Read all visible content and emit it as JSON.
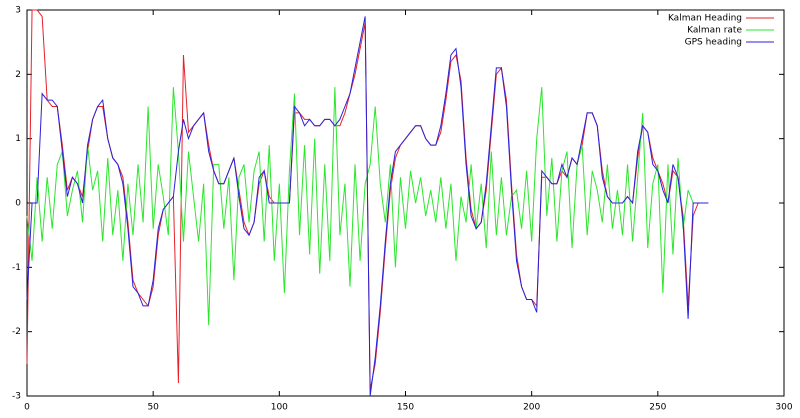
{
  "chart_data": {
    "type": "line",
    "x": [
      0,
      2,
      4,
      6,
      8,
      10,
      12,
      14,
      16,
      18,
      20,
      22,
      24,
      26,
      28,
      30,
      32,
      34,
      36,
      38,
      40,
      42,
      44,
      46,
      48,
      50,
      52,
      54,
      56,
      58,
      60,
      62,
      64,
      66,
      68,
      70,
      72,
      74,
      76,
      78,
      80,
      82,
      84,
      86,
      88,
      90,
      92,
      94,
      96,
      98,
      100,
      102,
      104,
      106,
      108,
      110,
      112,
      114,
      116,
      118,
      120,
      122,
      124,
      126,
      128,
      130,
      132,
      134,
      136,
      138,
      140,
      142,
      144,
      146,
      148,
      150,
      152,
      154,
      156,
      158,
      160,
      162,
      164,
      166,
      168,
      170,
      172,
      174,
      176,
      178,
      180,
      182,
      184,
      186,
      188,
      190,
      192,
      194,
      196,
      198,
      200,
      202,
      204,
      206,
      208,
      210,
      212,
      214,
      216,
      218,
      220,
      222,
      224,
      226,
      228,
      230,
      232,
      234,
      236,
      238,
      240,
      242,
      244,
      246,
      248,
      250,
      252,
      254,
      256,
      258,
      260,
      262,
      264,
      266,
      268,
      270
    ],
    "series": [
      {
        "name": "Kalman Heading",
        "color": "#e8202a",
        "values": [
          -2.5,
          3,
          3,
          2.9,
          1.6,
          1.5,
          1.5,
          0.9,
          0.2,
          0.4,
          0.3,
          0.1,
          0.8,
          1.3,
          1.5,
          1.5,
          1.0,
          0.7,
          0.6,
          0.4,
          -0.3,
          -1.2,
          -1.4,
          -1.5,
          -1.6,
          -1.3,
          -0.5,
          -0.1,
          0,
          0.1,
          -2.8,
          2.3,
          1.1,
          1.2,
          1.3,
          1.4,
          0.9,
          0.5,
          0.3,
          0.3,
          0.5,
          0.7,
          0.2,
          -0.3,
          -0.5,
          -0.3,
          0.3,
          0.5,
          0.1,
          0,
          0,
          0,
          0,
          1.4,
          1.4,
          1.3,
          1.3,
          1.2,
          1.2,
          1.3,
          1.3,
          1.2,
          1.2,
          1.4,
          1.7,
          2.0,
          2.4,
          2.8,
          -2.9,
          -2.5,
          -1.7,
          -0.7,
          0.2,
          0.7,
          0.9,
          1.0,
          1.1,
          1.2,
          1.2,
          1.0,
          0.9,
          0.9,
          1.1,
          1.6,
          2.2,
          2.3,
          1.9,
          0.7,
          -0.1,
          -0.4,
          -0.3,
          0.2,
          1.1,
          2.0,
          2.1,
          1.6,
          0.3,
          -0.8,
          -1.3,
          -1.5,
          -1.5,
          -1.6,
          0.4,
          0.4,
          0.3,
          0.3,
          0.5,
          0.4,
          0.7,
          0.6,
          0.9,
          1.4,
          1.4,
          1.2,
          0.5,
          0.1,
          0,
          0,
          0,
          0.1,
          0,
          0.7,
          1.2,
          1.1,
          0.7,
          0.5,
          0.3,
          0,
          0.5,
          0.4,
          -0.2,
          -1.6,
          -0.2,
          0,
          0,
          0
        ]
      },
      {
        "name": "Kalman rate",
        "color": "#2ce62c",
        "values": [
          -0.2,
          -0.9,
          0.4,
          -0.6,
          0.4,
          -0.4,
          0.6,
          0.8,
          -0.2,
          0.2,
          0.5,
          -0.3,
          0.9,
          0.2,
          0.5,
          -0.6,
          0.7,
          -0.5,
          0.2,
          -0.9,
          0.3,
          -0.5,
          0.6,
          -0.3,
          1.5,
          -0.4,
          0.6,
          0.1,
          -0.5,
          1.8,
          0.8,
          -0.6,
          0.8,
          0.1,
          -0.6,
          0.3,
          -1.9,
          0.6,
          0.6,
          -0.4,
          0.4,
          -1.2,
          0.4,
          0.6,
          -0.3,
          0.5,
          0.8,
          -0.6,
          0.9,
          -0.9,
          0.3,
          -1.4,
          0.5,
          1.7,
          -0.5,
          0.9,
          -0.8,
          1.0,
          -1.1,
          0.6,
          -0.9,
          1.8,
          -0.5,
          0.3,
          -1.3,
          0.6,
          -0.9,
          0.3,
          0.6,
          1.5,
          0.3,
          -0.3,
          0.6,
          -1.0,
          0.4,
          -0.4,
          0.5,
          0,
          0.4,
          -0.2,
          0.2,
          -0.3,
          0.4,
          -0.4,
          0.3,
          -0.9,
          0.1,
          -0.3,
          0.6,
          -0.4,
          0.3,
          -0.7,
          0.8,
          -0.5,
          0.4,
          -0.5,
          0.1,
          0.2,
          -0.4,
          0.5,
          -0.6,
          1.0,
          1.8,
          -0.2,
          0.7,
          -0.6,
          0.5,
          0.8,
          -0.7,
          0.6,
          0.9,
          -0.5,
          0.5,
          0.2,
          -0.3,
          0.6,
          -0.4,
          0.2,
          -0.5,
          0.6,
          -0.6,
          0.4,
          1.4,
          -0.7,
          0.3,
          0.6,
          -1.4,
          0.6,
          -0.8,
          0.7,
          -0.4,
          0.2,
          0,
          0,
          0,
          0
        ]
      },
      {
        "name": "GPS heading",
        "color": "#2a22d8",
        "values": [
          -1.5,
          0,
          0,
          1.7,
          1.6,
          1.6,
          1.5,
          0.8,
          0.1,
          0.4,
          0.3,
          0,
          0.9,
          1.3,
          1.5,
          1.6,
          1.0,
          0.7,
          0.6,
          0.3,
          -0.4,
          -1.3,
          -1.4,
          -1.6,
          -1.6,
          -1.2,
          -0.4,
          -0.1,
          0,
          0.1,
          0.8,
          1.3,
          1.0,
          1.2,
          1.3,
          1.4,
          0.8,
          0.5,
          0.3,
          0.3,
          0.5,
          0.7,
          0.1,
          -0.4,
          -0.5,
          -0.3,
          0.4,
          0.5,
          0,
          0,
          0,
          0,
          0,
          1.5,
          1.4,
          1.2,
          1.3,
          1.2,
          1.2,
          1.3,
          1.3,
          1.2,
          1.3,
          1.5,
          1.7,
          2.1,
          2.5,
          2.9,
          -3.0,
          -2.4,
          -1.6,
          -0.6,
          0.3,
          0.8,
          0.9,
          1.0,
          1.1,
          1.2,
          1.2,
          1.0,
          0.9,
          0.9,
          1.2,
          1.7,
          2.3,
          2.4,
          1.8,
          0.6,
          -0.2,
          -0.4,
          -0.3,
          0.3,
          1.2,
          2.1,
          2.1,
          1.5,
          0.2,
          -0.9,
          -1.3,
          -1.5,
          -1.5,
          -1.7,
          0.5,
          0.4,
          0.3,
          0.3,
          0.6,
          0.4,
          0.7,
          0.6,
          1.0,
          1.4,
          1.4,
          1.2,
          0.4,
          0.1,
          0,
          0,
          0,
          0.1,
          0,
          0.8,
          1.2,
          1.1,
          0.6,
          0.5,
          0.2,
          0,
          0.6,
          0.4,
          -0.3,
          -1.8,
          0,
          0,
          0,
          0
        ]
      }
    ],
    "xlim": [
      0,
      300
    ],
    "xticks": [
      0,
      50,
      100,
      150,
      200,
      250,
      300
    ],
    "ylim": [
      -3,
      3
    ],
    "yticks": [
      -3,
      -2,
      -1,
      0,
      1,
      2,
      3
    ],
    "legend": "top right"
  }
}
